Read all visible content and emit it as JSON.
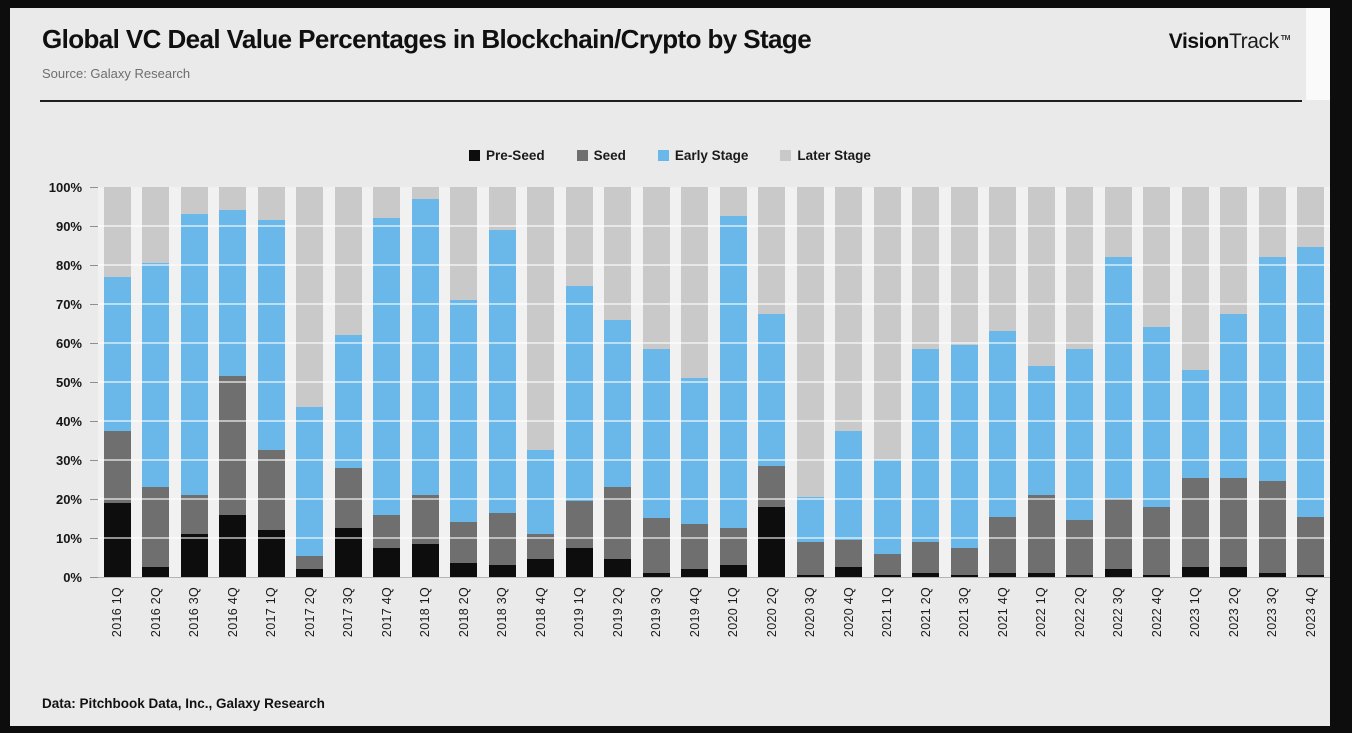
{
  "header": {
    "title": "Global VC Deal Value Percentages in Blockchain/Crypto by Stage",
    "source": "Source: Galaxy Research",
    "logo_bold": "Vision",
    "logo_light": "Track",
    "logo_tm": "TM"
  },
  "footer": {
    "text": "Data: Pitchbook Data, Inc., Galaxy Research"
  },
  "colors": {
    "pre_seed": "#0d0d0d",
    "seed": "#6f6f6f",
    "early_stage": "#69b8e9",
    "later_stage": "#c9c9c9",
    "background": "#eaeaea",
    "plot_background": "#f1f1f1",
    "frame": "#0d0d0d"
  },
  "chart_data": {
    "type": "bar",
    "stacked": true,
    "title": "Global VC Deal Value Percentages in Blockchain/Crypto by Stage",
    "xlabel": "",
    "ylabel": "",
    "ylim": [
      0,
      100
    ],
    "y_unit": "%",
    "grid": "horizontal",
    "legend_position": "top",
    "categories": [
      "2016 1Q",
      "2016 2Q",
      "2016 3Q",
      "2016 4Q",
      "2017 1Q",
      "2017 2Q",
      "2017 3Q",
      "2017 4Q",
      "2018 1Q",
      "2018 2Q",
      "2018 3Q",
      "2018 4Q",
      "2019 1Q",
      "2019 2Q",
      "2019 3Q",
      "2019 4Q",
      "2020 1Q",
      "2020 2Q",
      "2020 3Q",
      "2020 4Q",
      "2021 1Q",
      "2021 2Q",
      "2021 3Q",
      "2021 4Q",
      "2022 1Q",
      "2022 2Q",
      "2022 3Q",
      "2022 4Q",
      "2023 1Q",
      "2023 2Q",
      "2023 3Q",
      "2023 4Q"
    ],
    "series": [
      {
        "name": "Pre-Seed",
        "color_key": "pre_seed",
        "values": [
          19,
          2.5,
          11,
          16,
          12,
          2,
          12.5,
          7.5,
          8.5,
          3.5,
          3,
          4.5,
          7.5,
          4.5,
          1,
          2,
          3,
          18,
          0.5,
          2.5,
          0.5,
          1,
          0.5,
          1,
          1,
          0.5,
          2,
          0.5,
          2.5,
          2.5,
          1,
          0.5
        ]
      },
      {
        "name": "Seed",
        "color_key": "seed",
        "values": [
          18.5,
          20.5,
          10,
          35.5,
          20.5,
          3.5,
          15.5,
          8.5,
          12.5,
          10.5,
          13.5,
          6.5,
          12,
          18.5,
          14,
          11.5,
          9.5,
          10.5,
          8.5,
          7,
          5.5,
          8,
          7,
          14.5,
          20,
          14,
          18,
          17.5,
          23,
          23,
          23.5,
          15
        ]
      },
      {
        "name": "Early Stage",
        "color_key": "early_stage",
        "values": [
          39.5,
          57.5,
          72,
          42.5,
          59,
          38,
          34,
          76,
          76,
          57,
          72.5,
          21.5,
          55,
          43,
          43.5,
          37.5,
          80,
          39,
          11.5,
          28,
          24,
          49.5,
          52,
          47.5,
          33,
          44,
          62,
          46,
          27.5,
          42,
          57.5,
          69
        ]
      },
      {
        "name": "Later Stage",
        "color_key": "later_stage",
        "values": [
          23,
          19.5,
          7,
          6,
          8.5,
          56.5,
          38,
          8,
          3,
          29,
          11,
          67.5,
          25.5,
          34,
          41.5,
          49,
          7.5,
          32.5,
          79.5,
          62.5,
          70,
          41.5,
          40.5,
          37,
          46,
          41.5,
          18,
          36,
          47,
          32.5,
          18,
          15.5
        ]
      }
    ],
    "y_axis": {
      "ticks": [
        "100%",
        "90%",
        "80%",
        "70%",
        "60%",
        "50%",
        "40%",
        "30%",
        "20%",
        "10%",
        "0%"
      ]
    }
  }
}
